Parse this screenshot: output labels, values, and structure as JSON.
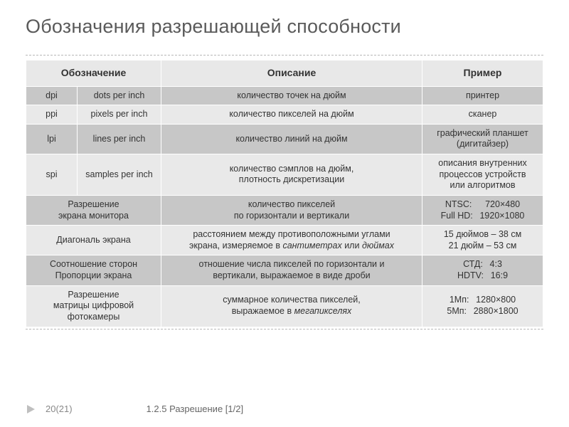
{
  "title": "Обозначения разрешающей способности",
  "table": {
    "columns": [
      "Обозначение",
      "Описание",
      "Пример"
    ],
    "rows": [
      {
        "shade": "dark",
        "cells": [
          [
            "dpi",
            "dots per inch"
          ],
          "количество точек на дюйм",
          "принтер"
        ]
      },
      {
        "shade": "light",
        "cells": [
          [
            "ppi",
            "pixels per inch"
          ],
          "количество пикселей на дюйм",
          "сканер"
        ]
      },
      {
        "shade": "dark",
        "cells": [
          [
            "lpi",
            "lines per inch"
          ],
          "количество линий на дюйм",
          "графический планшет\n(дигитайзер)"
        ]
      },
      {
        "shade": "light",
        "cells": [
          [
            "spi",
            "samples per inch"
          ],
          "количество сэмплов на дюйм,\nплотность дискретизации",
          "описания внутренних\nпроцессов устройств\nили алгоритмов"
        ]
      },
      {
        "shade": "dark",
        "cells": [
          "Разрешение\nэкрана монитора",
          "количество пикселей\nпо горизонтали и вертикали",
          "NTSC:  720×480\nFull HD:  1920×1080"
        ]
      },
      {
        "shade": "light",
        "cells": [
          "Диагональ экрана",
          "расстоянием между противоположными углами\nэкрана, измеряемое в <i>сантиметрах</i> или <i>дюймах</i>",
          "15 дюймов – 38 см\n21 дюйм – 53 см"
        ]
      },
      {
        "shade": "dark",
        "cells": [
          "Соотношение сторон\nПропорции экрана",
          "отношение числа пикселей по горизонтали и\nвертикали, выражаемое в виде дроби",
          "СТД:  4:3\nHDTV:  16:9"
        ]
      },
      {
        "shade": "light",
        "cells": [
          "Разрешение\nматрицы цифровой\nфотокамеры",
          "суммарное количества пикселей,\nвыражаемое в <i>мегапикселях</i>",
          "1Мп:  1280×800\n5Мп:  2880×1800"
        ]
      }
    ]
  },
  "footer": {
    "page": "20(21)",
    "breadcrumb": "1.2.5 Разрешение  [1/2]"
  },
  "style": {
    "header_bg": "#e8e8e8",
    "row_dark_bg": "#c7c7c7",
    "row_light_bg": "#e9e9e9",
    "border_color": "#ffffff",
    "title_color": "#5a5a5a",
    "dash_color": "#b8b8b8"
  }
}
